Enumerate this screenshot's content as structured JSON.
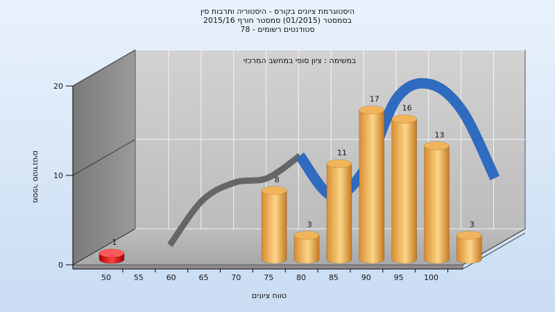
{
  "title_lines": [
    "היסטוגרמת ציונים בקורס - היסטוריה ותרבות סין",
    "בסמסטר   (01/2015)   סמסטר חורף  2015/16",
    "סטודנטים רשומים - 78"
  ],
  "chart_data": {
    "type": "bar",
    "subtitle": "במשימה : ציון סופי במחשב המרכזי",
    "xlabel": "טווח ציונים",
    "ylabel": "מספר סטודנטים",
    "x_ticks": [
      "50",
      "55",
      "60",
      "65",
      "70",
      "75",
      "80",
      "85",
      "90",
      "95",
      "100"
    ],
    "y_ticks": [
      "0",
      "10",
      "20"
    ],
    "ylim": [
      0,
      20
    ],
    "grid": true,
    "bars": [
      {
        "x": 50,
        "value": 1,
        "label": "1",
        "color": "#e01010"
      },
      {
        "x": 75,
        "value": 8,
        "label": "8",
        "color": "#e3a24a"
      },
      {
        "x": 80,
        "value": 3,
        "label": "3",
        "color": "#e3a24a"
      },
      {
        "x": 85,
        "value": 11,
        "label": "11",
        "color": "#e3a24a"
      },
      {
        "x": 90,
        "value": 17,
        "label": "17",
        "color": "#e3a24a"
      },
      {
        "x": 95,
        "value": 16,
        "label": "16",
        "color": "#e3a24a"
      },
      {
        "x": 100,
        "value": 13,
        "label": "13",
        "color": "#e3a24a"
      },
      {
        "x": 105,
        "value": 3,
        "label": "3",
        "color": "#e3a24a"
      }
    ],
    "curve": {
      "x": [
        55,
        60,
        65,
        70,
        75,
        80,
        85,
        90,
        95,
        100,
        105
      ],
      "y": [
        0.5,
        5.5,
        7.5,
        8,
        10.5,
        6,
        9,
        17,
        18.5,
        15.5,
        8
      ],
      "color": "#2f6bbf",
      "shadow_color": "#666666"
    }
  }
}
